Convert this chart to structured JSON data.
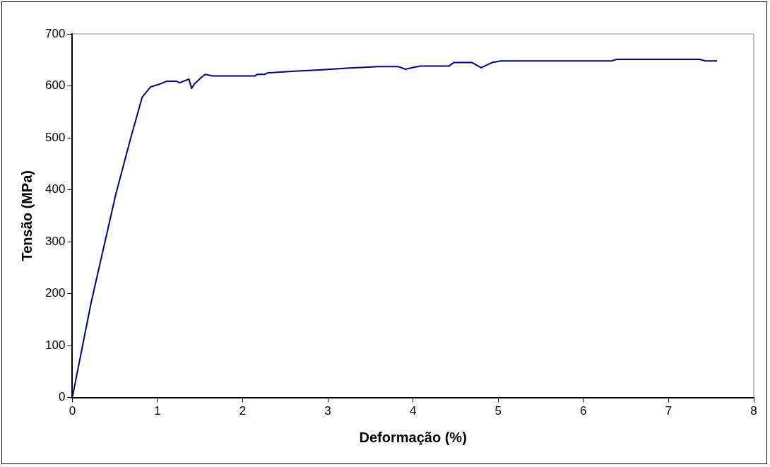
{
  "chart_data": {
    "type": "line",
    "xlabel": "Deformação (%)",
    "ylabel": "Tensão (MPa)",
    "x": [
      0,
      0.22,
      0.51,
      0.69,
      0.82,
      0.92,
      1.02,
      1.11,
      1.22,
      1.26,
      1.37,
      1.4,
      1.43,
      1.52,
      1.56,
      1.65,
      2.14,
      2.17,
      2.26,
      2.29,
      2.57,
      2.94,
      3.22,
      3.59,
      3.83,
      3.91,
      3.99,
      4.09,
      4.42,
      4.48,
      4.69,
      4.8,
      4.93,
      5.03,
      6.33,
      6.39,
      7.37,
      7.43,
      7.57
    ],
    "series": [
      {
        "color": "#000080",
        "values": [
          0,
          182,
          391,
          502,
          578,
          598,
          603,
          609,
          609,
          606,
          613,
          595,
          603,
          617,
          622,
          619,
          619,
          622,
          622,
          625,
          628,
          631,
          634,
          637,
          637,
          632,
          635,
          638,
          638,
          645,
          645,
          635,
          645,
          648,
          648,
          651,
          651,
          648,
          648
        ]
      }
    ],
    "xlim": [
      0,
      8
    ],
    "xticks": [
      0,
      1,
      2,
      3,
      4,
      5,
      6,
      7,
      8
    ],
    "ylim": [
      0,
      700
    ],
    "yticks": [
      0,
      100,
      200,
      300,
      400,
      500,
      600,
      700
    ],
    "grid": false,
    "legend": false,
    "marker": "none",
    "line_style": "solid"
  }
}
